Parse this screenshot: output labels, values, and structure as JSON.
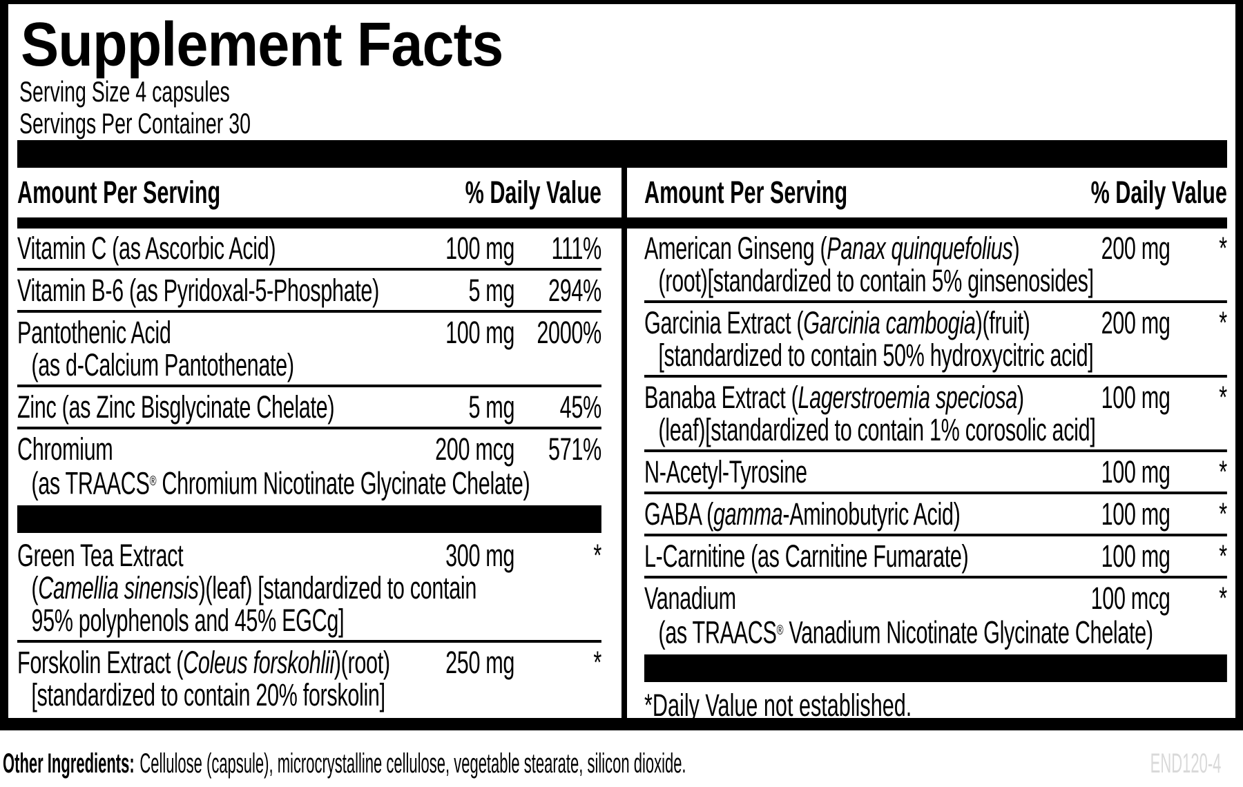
{
  "colors": {
    "ink": "#000000",
    "paper": "#ffffff",
    "product_code_gray": "#d9d9d9"
  },
  "header": {
    "title": "Supplement Facts",
    "serving_size": "Serving Size 4 capsules",
    "servings_per_container": "Servings Per Container 30"
  },
  "table": {
    "left": {
      "header": {
        "amount": "Amount Per Serving",
        "dv": "% Daily Value"
      },
      "groups": [
        {
          "rows": [
            {
              "name": [
                {
                  "t": "Vitamin C (as Ascorbic Acid)"
                }
              ],
              "amount": "100 mg",
              "dv": "111%"
            },
            {
              "name": [
                {
                  "t": "Vitamin B-6 (as Pyridoxal-5-Phosphate)"
                }
              ],
              "amount": "5 mg",
              "dv": "294%"
            },
            {
              "name": [
                {
                  "t": "Pantothenic Acid"
                }
              ],
              "amount": "100 mg",
              "dv": "2000%",
              "sub": [
                [
                  {
                    "t": "(as d-Calcium Pantothenate)"
                  }
                ]
              ]
            },
            {
              "name": [
                {
                  "t": "Zinc (as Zinc Bisglycinate Chelate)"
                }
              ],
              "amount": "5 mg",
              "dv": "45%"
            },
            {
              "name": [
                {
                  "t": "Chromium"
                }
              ],
              "amount": "200 mcg",
              "dv": "571%",
              "sub": [
                [
                  {
                    "t": "(as TRAACS"
                  },
                  {
                    "t": "®",
                    "sup": true
                  },
                  {
                    "t": " Chromium Nicotinate Glycinate Chelate)"
                  }
                ]
              ]
            }
          ]
        },
        {
          "rows": [
            {
              "name": [
                {
                  "t": "Green Tea Extract"
                }
              ],
              "amount": "300 mg",
              "dv": "*",
              "sub": [
                [
                  {
                    "t": "("
                  },
                  {
                    "t": "Camellia sinensis",
                    "i": true
                  },
                  {
                    "t": ")(leaf) [standardized to contain"
                  }
                ],
                [
                  {
                    "t": "95% polyphenols and 45% EGCg]"
                  }
                ]
              ]
            },
            {
              "name": [
                {
                  "t": "Forskolin Extract ("
                },
                {
                  "t": "Coleus forskohlii",
                  "i": true
                },
                {
                  "t": ")(root)"
                }
              ],
              "amount": "250 mg",
              "dv": "*",
              "sub": [
                [
                  {
                    "t": "[standardized to contain 20% forskolin]"
                  }
                ]
              ]
            }
          ]
        }
      ]
    },
    "right": {
      "header": {
        "amount": "Amount Per Serving",
        "dv": "% Daily Value"
      },
      "groups": [
        {
          "rows": [
            {
              "name": [
                {
                  "t": "American Ginseng ("
                },
                {
                  "t": "Panax quinquefolius",
                  "i": true
                },
                {
                  "t": ")"
                }
              ],
              "amount": "200 mg",
              "dv": "*",
              "sub": [
                [
                  {
                    "t": "(root)[standardized to contain 5% ginsenosides]"
                  }
                ]
              ]
            },
            {
              "name": [
                {
                  "t": "Garcinia Extract ("
                },
                {
                  "t": "Garcinia cambogia",
                  "i": true
                },
                {
                  "t": ")(fruit)"
                }
              ],
              "amount": "200 mg",
              "dv": "*",
              "sub": [
                [
                  {
                    "t": "[standardized to contain 50% hydroxycitric acid]"
                  }
                ]
              ]
            },
            {
              "name": [
                {
                  "t": "Banaba Extract ("
                },
                {
                  "t": "Lagerstroemia speciosa",
                  "i": true
                },
                {
                  "t": ")"
                }
              ],
              "amount": "100 mg",
              "dv": "*",
              "sub": [
                [
                  {
                    "t": "(leaf)[standardized to contain 1% corosolic acid]"
                  }
                ]
              ]
            },
            {
              "name": [
                {
                  "t": "N-Acetyl-Tyrosine"
                }
              ],
              "amount": "100 mg",
              "dv": "*"
            },
            {
              "name": [
                {
                  "t": "GABA ("
                },
                {
                  "t": "gamma",
                  "i": true
                },
                {
                  "t": "-Aminobutyric Acid)"
                }
              ],
              "amount": "100 mg",
              "dv": "*"
            },
            {
              "name": [
                {
                  "t": "L-Carnitine (as Carnitine Fumarate)"
                }
              ],
              "amount": "100 mg",
              "dv": "*"
            },
            {
              "name": [
                {
                  "t": "Vanadium"
                }
              ],
              "amount": "100 mcg",
              "dv": "*",
              "sub": [
                [
                  {
                    "t": "(as TRAACS"
                  },
                  {
                    "t": "®",
                    "sup": true
                  },
                  {
                    "t": " Vanadium Nicotinate Glycinate Chelate)"
                  }
                ]
              ]
            }
          ]
        }
      ],
      "footnote": "*Daily Value not established."
    }
  },
  "footer": {
    "other_ingredients_label": "Other Ingredients:",
    "other_ingredients_text": "Cellulose (capsule), microcrystalline cellulose, vegetable stearate, silicon dioxide.",
    "product_code": "END120-4"
  }
}
